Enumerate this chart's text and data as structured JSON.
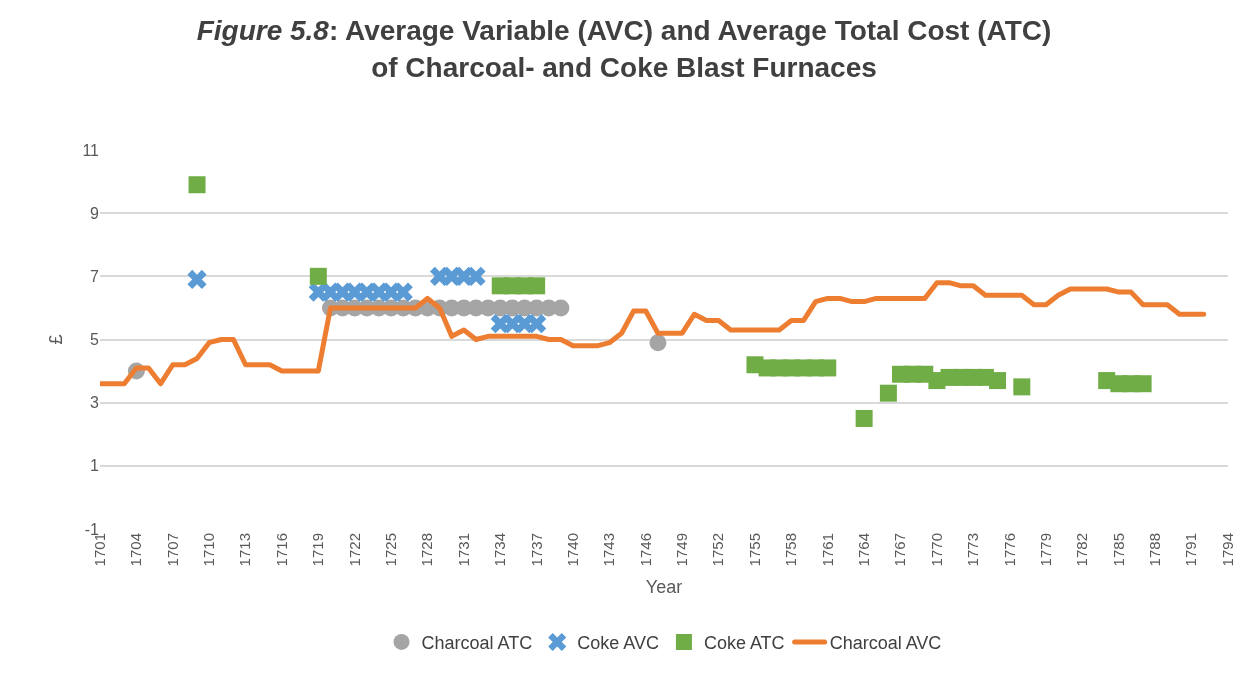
{
  "chart_data": {
    "type": "line",
    "title": "Figure 5.8: Average Variable (AVC) and Average Total Cost (ATC)\nof Charcoal- and Coke Blast Furnaces",
    "xlabel": "Year",
    "ylabel": "£",
    "xlim": [
      1701,
      1794
    ],
    "xticks": [
      1701,
      1704,
      1707,
      1710,
      1713,
      1716,
      1719,
      1722,
      1725,
      1728,
      1731,
      1734,
      1737,
      1740,
      1743,
      1746,
      1749,
      1752,
      1755,
      1758,
      1761,
      1764,
      1767,
      1770,
      1773,
      1776,
      1779,
      1782,
      1785,
      1788,
      1791,
      1794
    ],
    "ylim": [
      -1,
      11
    ],
    "yticks": [
      -1,
      1,
      3,
      5,
      7,
      9,
      11
    ],
    "grid": "y",
    "legend": "bottom",
    "series": [
      {
        "name": "Charcoal AVC",
        "color": "#ed7d31",
        "x": [
          1701,
          1702,
          1703,
          1704,
          1705,
          1706,
          1707,
          1708,
          1709,
          1710,
          1711,
          1712,
          1713,
          1714,
          1715,
          1716,
          1717,
          1718,
          1719,
          1720,
          1721,
          1722,
          1723,
          1724,
          1725,
          1726,
          1727,
          1728,
          1729,
          1730,
          1731,
          1732,
          1733,
          1734,
          1735,
          1736,
          1737,
          1738,
          1739,
          1740,
          1741,
          1742,
          1743,
          1744,
          1745,
          1746,
          1747,
          1748,
          1749,
          1750,
          1751,
          1752,
          1753,
          1754,
          1755,
          1756,
          1757,
          1758,
          1759,
          1760,
          1761,
          1762,
          1763,
          1764,
          1765,
          1766,
          1767,
          1768,
          1769,
          1770,
          1771,
          1772,
          1773,
          1774,
          1775,
          1776,
          1777,
          1778,
          1779,
          1780,
          1781,
          1782,
          1783,
          1784,
          1785,
          1786,
          1787,
          1788,
          1789,
          1790,
          1791,
          1792
        ],
        "values": [
          3.6,
          3.6,
          3.6,
          4.1,
          4.1,
          3.6,
          4.2,
          4.2,
          4.4,
          4.9,
          5.0,
          5.0,
          4.2,
          4.2,
          4.2,
          4.0,
          4.0,
          4.0,
          4.0,
          6.0,
          6.0,
          6.0,
          6.0,
          6.0,
          6.0,
          6.0,
          6.0,
          6.3,
          6.0,
          5.1,
          5.3,
          5.0,
          5.1,
          5.1,
          5.1,
          5.1,
          5.1,
          5.0,
          5.0,
          4.8,
          4.8,
          4.8,
          4.9,
          5.2,
          5.9,
          5.9,
          5.2,
          5.2,
          5.2,
          5.8,
          5.6,
          5.6,
          5.3,
          5.3,
          5.3,
          5.3,
          5.3,
          5.6,
          5.6,
          6.2,
          6.3,
          6.3,
          6.2,
          6.2,
          6.3,
          6.3,
          6.3,
          6.3,
          6.3,
          6.8,
          6.8,
          6.7,
          6.7,
          6.4,
          6.4,
          6.4,
          6.4,
          6.1,
          6.1,
          6.4,
          6.6,
          6.6,
          6.6,
          6.6,
          6.5,
          6.5,
          6.1,
          6.1,
          6.1,
          5.8,
          5.8,
          5.8
        ]
      },
      {
        "name": "Charcoal ATC",
        "type": "scatter",
        "marker": "circle",
        "color": "#a5a5a5",
        "x": [
          1704,
          1720,
          1721,
          1722,
          1723,
          1724,
          1725,
          1726,
          1727,
          1728,
          1729,
          1730,
          1731,
          1732,
          1733,
          1734,
          1735,
          1736,
          1737,
          1738,
          1739,
          1747
        ],
        "values": [
          4.0,
          6.0,
          6.0,
          6.0,
          6.0,
          6.0,
          6.0,
          6.0,
          6.0,
          6.0,
          6.0,
          6.0,
          6.0,
          6.0,
          6.0,
          6.0,
          6.0,
          6.0,
          6.0,
          6.0,
          6.0,
          4.9
        ]
      },
      {
        "name": "Coke AVC",
        "type": "scatter",
        "marker": "cross",
        "color": "#5b9bd5",
        "x": [
          1709,
          1719,
          1720,
          1721,
          1722,
          1723,
          1724,
          1725,
          1726,
          1729,
          1730,
          1731,
          1732,
          1734,
          1735,
          1736,
          1737
        ],
        "values": [
          6.9,
          6.5,
          6.5,
          6.5,
          6.5,
          6.5,
          6.5,
          6.5,
          6.5,
          7.0,
          7.0,
          7.0,
          7.0,
          5.5,
          5.5,
          5.5,
          5.5
        ]
      },
      {
        "name": "Coke ATC",
        "type": "scatter",
        "marker": "square",
        "color": "#70ad47",
        "x": [
          1709,
          1719,
          1734,
          1735,
          1736,
          1737,
          1755,
          1756,
          1757,
          1758,
          1759,
          1760,
          1761,
          1764,
          1766,
          1767,
          1768,
          1769,
          1770,
          1771,
          1772,
          1773,
          1774,
          1775,
          1777,
          1784,
          1785,
          1786,
          1787
        ],
        "values": [
          9.9,
          7.0,
          6.7,
          6.7,
          6.7,
          6.7,
          4.2,
          4.1,
          4.1,
          4.1,
          4.1,
          4.1,
          4.1,
          2.5,
          3.3,
          3.9,
          3.9,
          3.9,
          3.7,
          3.8,
          3.8,
          3.8,
          3.8,
          3.7,
          3.5,
          3.7,
          3.6,
          3.6,
          3.6
        ]
      }
    ]
  }
}
